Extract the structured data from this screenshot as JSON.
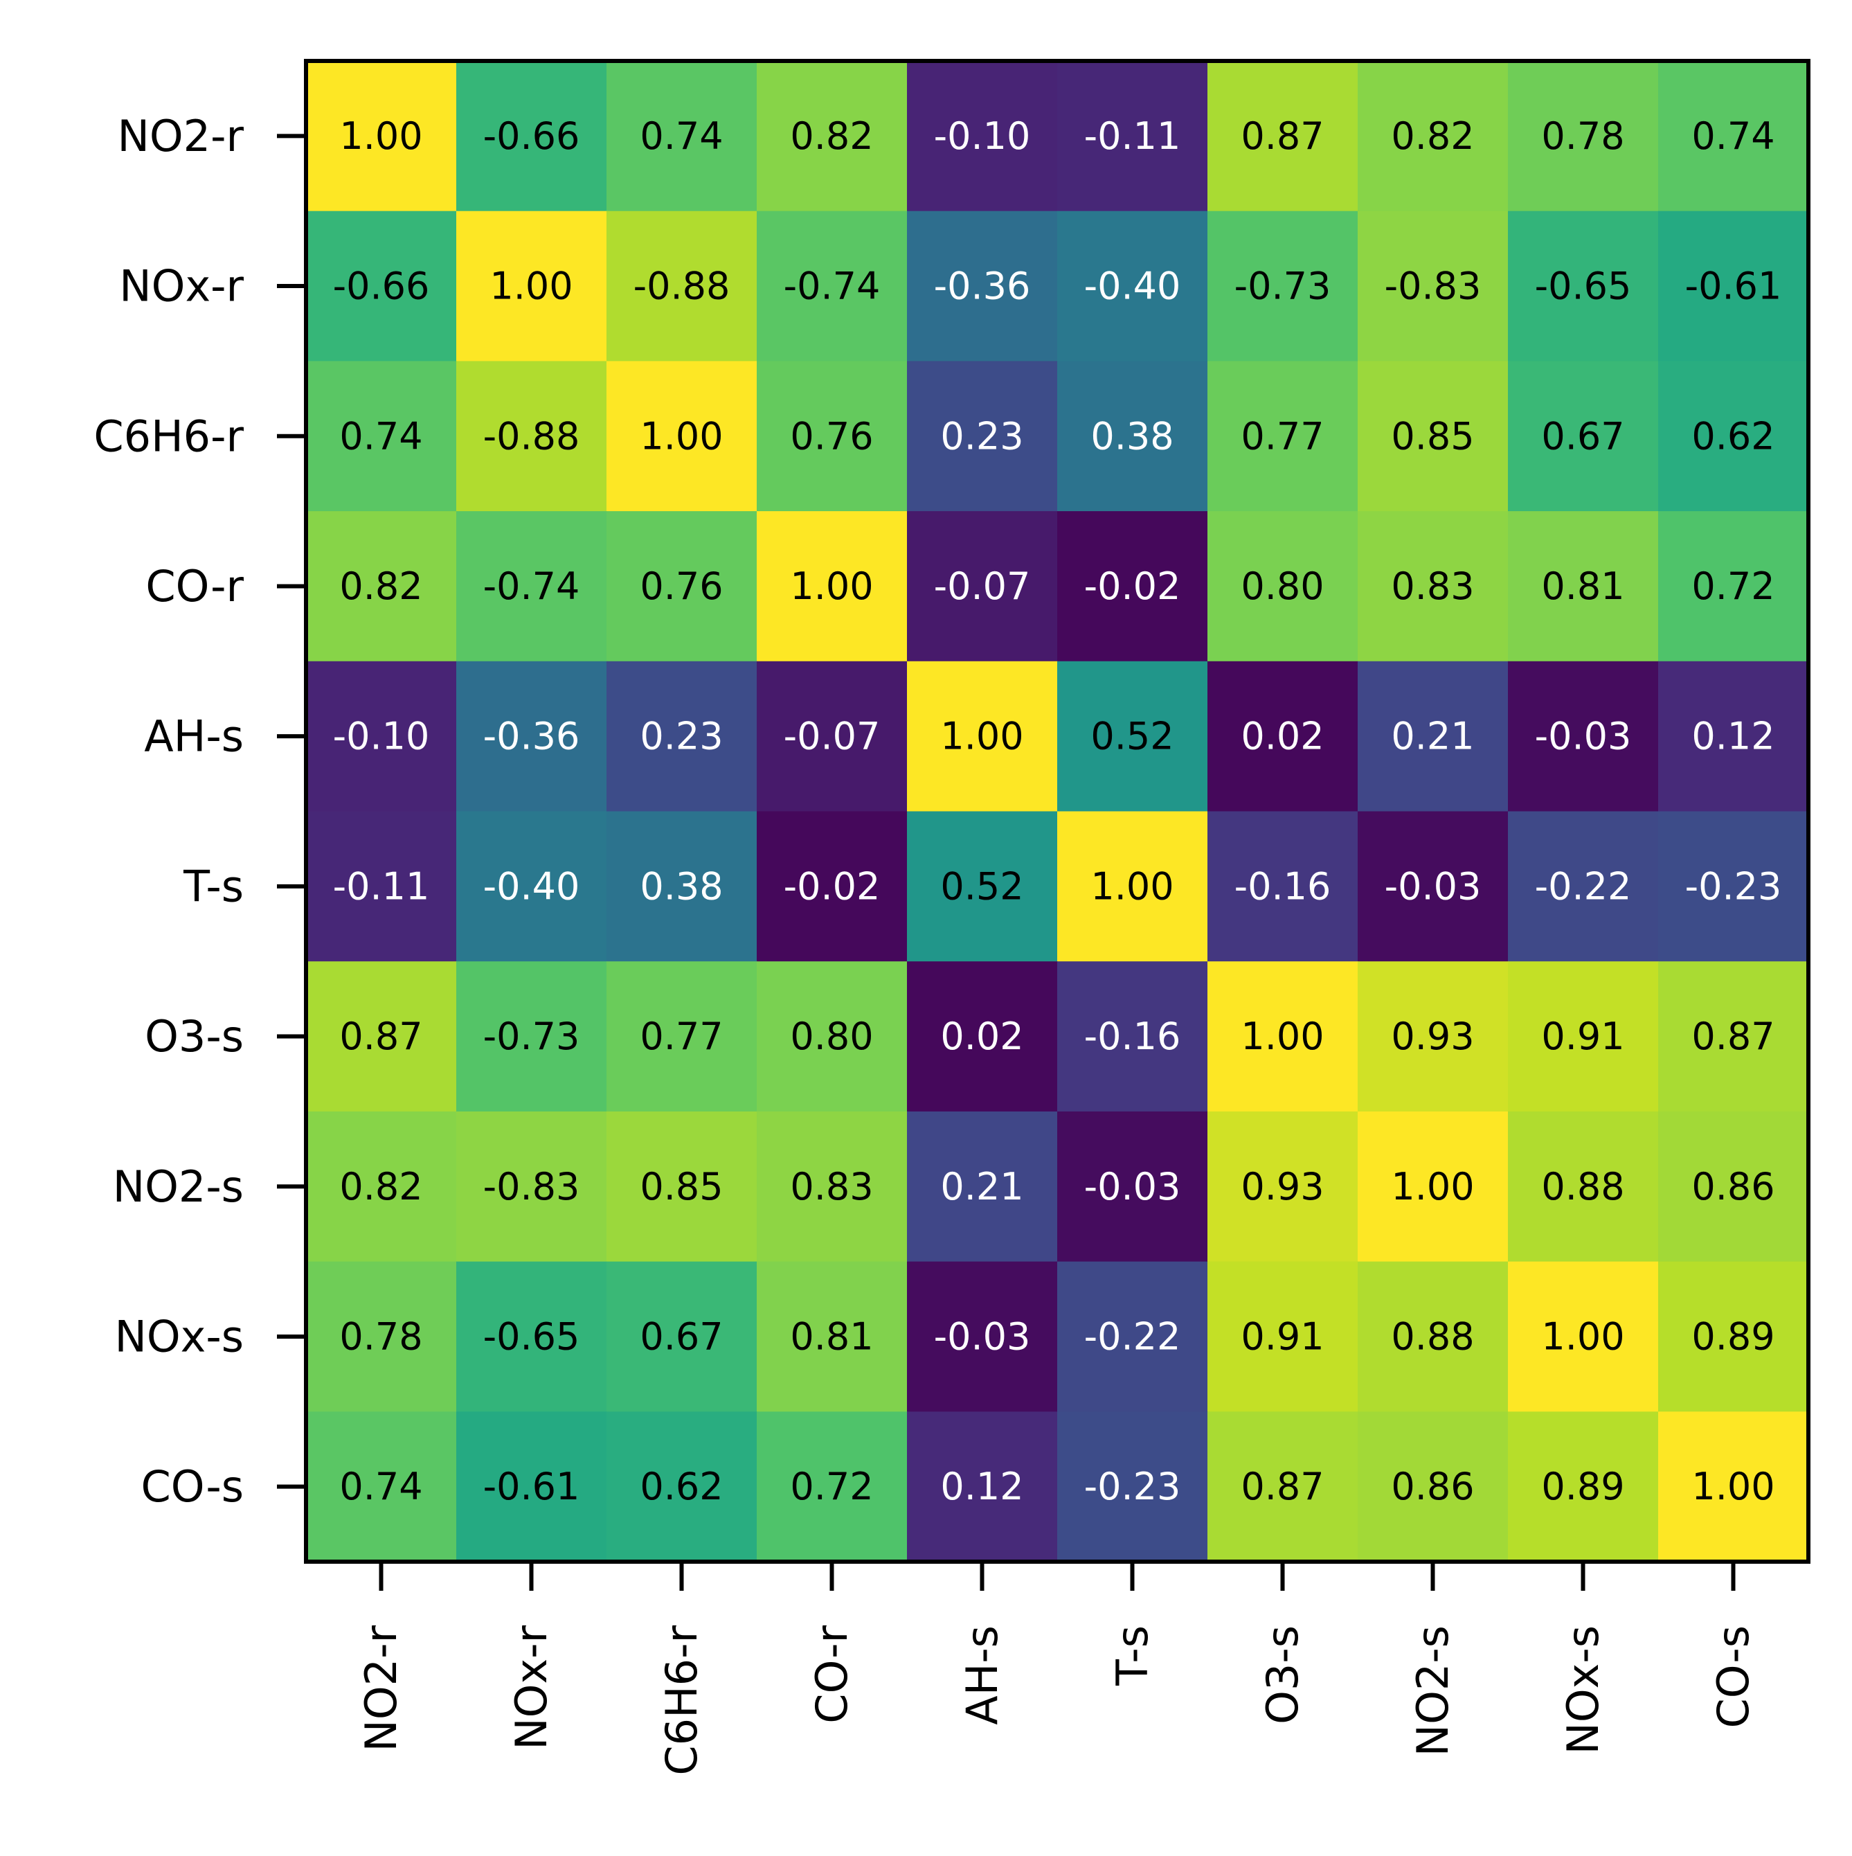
{
  "chart_data": {
    "type": "heatmap",
    "title": "",
    "xlabel": "",
    "ylabel": "",
    "row_labels": [
      "NO2-r",
      "NOx-r",
      "C6H6-r",
      "CO-r",
      "AH-s",
      "T-s",
      "O3-s",
      "NO2-s",
      "NOx-s",
      "CO-s"
    ],
    "col_labels": [
      "NO2-r",
      "NOx-r",
      "C6H6-r",
      "CO-r",
      "AH-s",
      "T-s",
      "O3-s",
      "NO2-s",
      "NOx-s",
      "CO-s"
    ],
    "values": [
      [
        1.0,
        -0.66,
        0.74,
        0.82,
        -0.1,
        -0.11,
        0.87,
        0.82,
        0.78,
        0.74
      ],
      [
        -0.66,
        1.0,
        -0.88,
        -0.74,
        -0.36,
        -0.4,
        -0.73,
        -0.83,
        -0.65,
        -0.61
      ],
      [
        0.74,
        -0.88,
        1.0,
        0.76,
        0.23,
        0.38,
        0.77,
        0.85,
        0.67,
        0.62
      ],
      [
        0.82,
        -0.74,
        0.76,
        1.0,
        -0.07,
        -0.02,
        0.8,
        0.83,
        0.81,
        0.72
      ],
      [
        -0.1,
        -0.36,
        0.23,
        -0.07,
        1.0,
        0.52,
        0.02,
        0.21,
        -0.03,
        0.12
      ],
      [
        -0.11,
        -0.4,
        0.38,
        -0.02,
        0.52,
        1.0,
        -0.16,
        -0.03,
        -0.22,
        -0.23
      ],
      [
        0.87,
        -0.73,
        0.77,
        0.8,
        0.02,
        -0.16,
        1.0,
        0.93,
        0.91,
        0.87
      ],
      [
        0.82,
        -0.83,
        0.85,
        0.83,
        0.21,
        -0.03,
        0.93,
        1.0,
        0.88,
        0.86
      ],
      [
        0.78,
        -0.65,
        0.67,
        0.81,
        -0.03,
        -0.22,
        0.91,
        0.88,
        1.0,
        0.89
      ],
      [
        0.74,
        -0.61,
        0.62,
        0.72,
        0.12,
        -0.23,
        0.87,
        0.86,
        0.89,
        1.0
      ]
    ],
    "colormap": "viridis",
    "color_metric": "absolute value",
    "color_range": [
      0,
      1
    ],
    "value_format": "2 decimals",
    "grid": false,
    "legend": "none"
  }
}
